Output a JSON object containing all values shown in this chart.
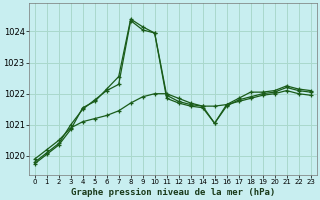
{
  "title": "Graphe pression niveau de la mer (hPa)",
  "background_color": "#c8eef0",
  "grid_color": "#aad8cc",
  "line_color": "#1a5c1a",
  "ylim": [
    1019.4,
    1024.9
  ],
  "yticks": [
    1020,
    1021,
    1022,
    1023,
    1024
  ],
  "xlim": [
    -0.5,
    23.5
  ],
  "x_labels": [
    "0",
    "1",
    "2",
    "3",
    "4",
    "5",
    "6",
    "7",
    "8",
    "9",
    "10",
    "11",
    "12",
    "13",
    "14",
    "15",
    "16",
    "17",
    "18",
    "19",
    "20",
    "21",
    "22",
    "23"
  ],
  "series": [
    [
      1019.75,
      1020.05,
      1020.35,
      1020.85,
      1021.55,
      1021.75,
      1022.15,
      1022.55,
      1024.4,
      1024.15,
      1023.95,
      1021.95,
      1021.75,
      1021.65,
      1021.6,
      1021.6,
      1021.65,
      1021.85,
      1022.05,
      1022.05,
      1022.1,
      1022.25,
      1022.15,
      1022.1
    ],
    [
      1019.8,
      1020.1,
      1020.4,
      1021.0,
      1021.5,
      1021.8,
      1022.1,
      1022.3,
      1024.35,
      1024.05,
      1023.95,
      1021.85,
      1021.7,
      1021.6,
      1021.55,
      1021.05,
      1021.6,
      1021.8,
      1021.9,
      1022.0,
      1022.05,
      1022.2,
      1022.1,
      1022.05
    ],
    [
      1019.9,
      1020.2,
      1020.5,
      1020.9,
      1021.1,
      1021.2,
      1021.3,
      1021.45,
      1021.7,
      1021.9,
      1022.0,
      1022.0,
      1021.85,
      1021.7,
      1021.6,
      1021.05,
      1021.65,
      1021.75,
      1021.85,
      1021.95,
      1022.0,
      1022.1,
      1022.0,
      1021.95
    ]
  ]
}
